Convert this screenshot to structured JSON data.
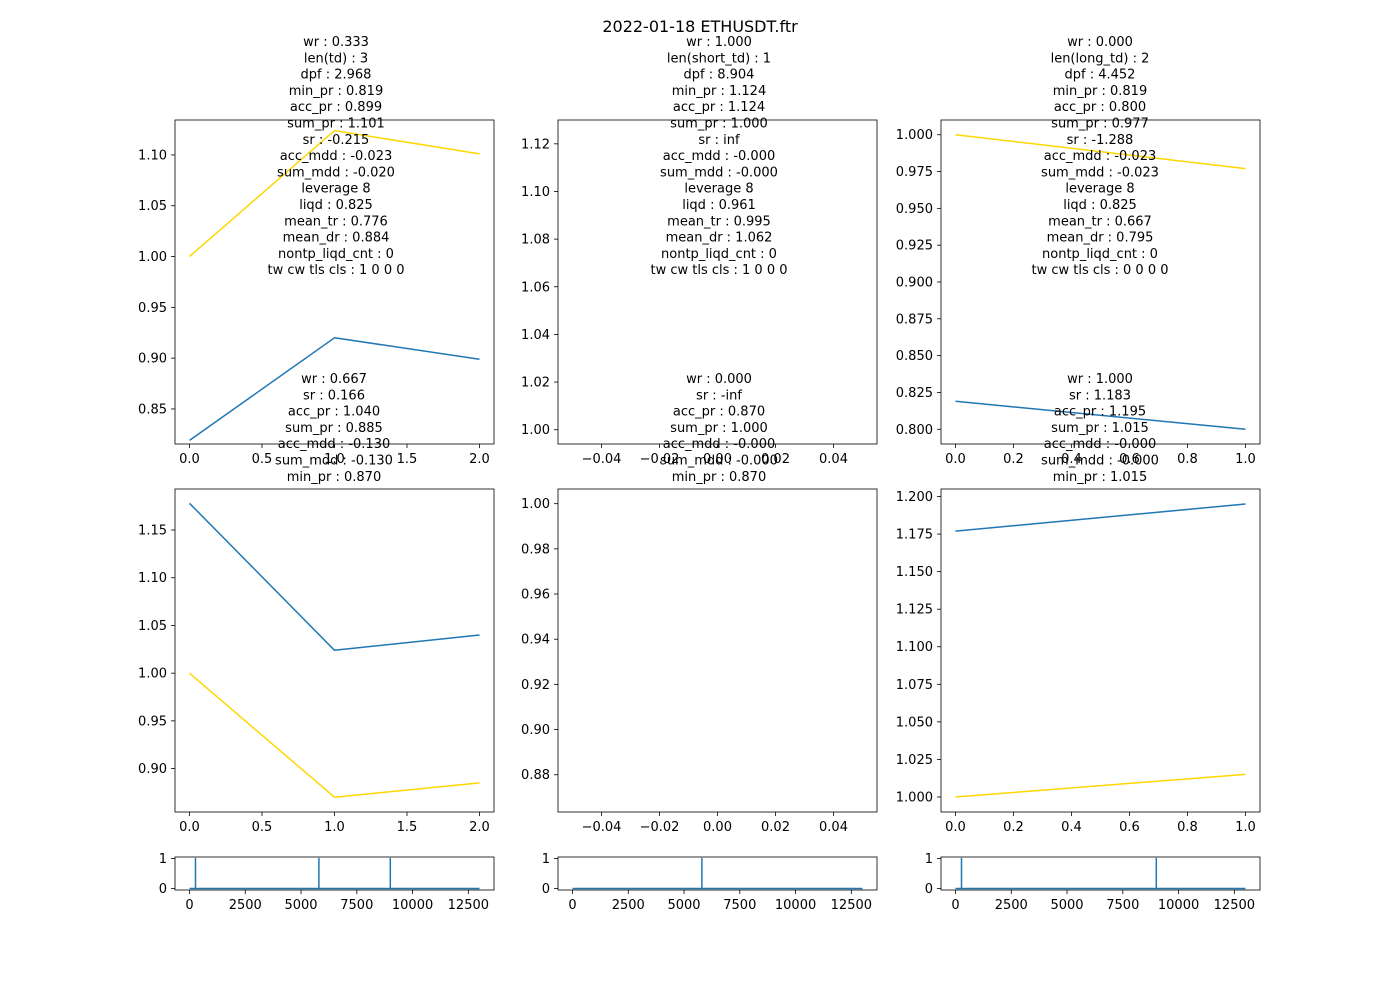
{
  "figure": {
    "title": "2022-01-18 ETHUSDT.ftr"
  },
  "colors": {
    "gold": "#ffd700",
    "blue": "#1f77b4",
    "axis": "#000000"
  },
  "chart_data": [
    {
      "id": "top-left",
      "type": "line",
      "annotation": [
        "wr : 0.333",
        "len(td) : 3",
        "dpf : 2.968",
        "min_pr : 0.819",
        "acc_pr : 0.899",
        "sum_pr : 1.101",
        "sr : -0.215",
        "acc_mdd : -0.023",
        "sum_mdd : -0.020",
        "leverage 8",
        "liqd : 0.825",
        "mean_tr : 0.776",
        "mean_dr : 0.884",
        "nontp_liqd_cnt : 0",
        "tw cw tls cls : 1 0 0 0"
      ],
      "xlim": [
        -0.1,
        2.1
      ],
      "ylim": [
        0.8155,
        1.1344
      ],
      "xticks": [
        0.0,
        0.5,
        1.0,
        1.5,
        2.0
      ],
      "xtick_labels": [
        "0.0",
        "0.5",
        "1.0",
        "1.5",
        "2.0"
      ],
      "yticks": [
        0.85,
        0.9,
        0.95,
        1.0,
        1.05,
        1.1
      ],
      "ytick_labels": [
        "0.85",
        "0.90",
        "0.95",
        "1.00",
        "1.05",
        "1.10"
      ],
      "series": [
        {
          "color": "gold",
          "x": [
            0,
            1,
            2
          ],
          "y": [
            1.0,
            1.124,
            1.101
          ]
        },
        {
          "color": "blue",
          "x": [
            0,
            1,
            2
          ],
          "y": [
            0.819,
            0.92,
            0.899
          ]
        }
      ]
    },
    {
      "id": "top-middle",
      "type": "line",
      "annotation": [
        "wr : 1.000",
        "len(short_td) : 1",
        "dpf : 8.904",
        "min_pr : 1.124",
        "acc_pr : 1.124",
        "sum_pr : 1.000",
        "sr : inf",
        "acc_mdd : -0.000",
        "sum_mdd : -0.000",
        "leverage 8",
        "liqd : 0.961",
        "mean_tr : 0.995",
        "mean_dr : 1.062",
        "nontp_liqd_cnt : 0",
        "tw cw tls cls : 1 0 0 0"
      ],
      "xlim": [
        -0.055,
        0.055
      ],
      "ylim": [
        0.994,
        1.13
      ],
      "xticks": [
        -0.04,
        -0.02,
        0.0,
        0.02,
        0.04
      ],
      "xtick_labels": [
        "−0.04",
        "−0.02",
        "0.00",
        "0.02",
        "0.04"
      ],
      "yticks": [
        1.0,
        1.02,
        1.04,
        1.06,
        1.08,
        1.1,
        1.12
      ],
      "ytick_labels": [
        "1.00",
        "1.02",
        "1.04",
        "1.06",
        "1.08",
        "1.10",
        "1.12"
      ],
      "series": []
    },
    {
      "id": "top-right",
      "type": "line",
      "annotation": [
        "wr : 0.000",
        "len(long_td) : 2",
        "dpf : 4.452",
        "min_pr : 0.819",
        "acc_pr : 0.800",
        "sum_pr : 0.977",
        "sr : -1.288",
        "acc_mdd : -0.023",
        "sum_mdd : -0.023",
        "leverage 8",
        "liqd : 0.825",
        "mean_tr : 0.667",
        "mean_dr : 0.795",
        "nontp_liqd_cnt : 0",
        "tw cw tls cls : 0 0 0 0"
      ],
      "xlim": [
        -0.05,
        1.05
      ],
      "ylim": [
        0.79,
        1.01
      ],
      "xticks": [
        0.0,
        0.2,
        0.4,
        0.6,
        0.8,
        1.0
      ],
      "xtick_labels": [
        "0.0",
        "0.2",
        "0.4",
        "0.6",
        "0.8",
        "1.0"
      ],
      "yticks": [
        0.8,
        0.825,
        0.85,
        0.875,
        0.9,
        0.925,
        0.95,
        0.975,
        1.0
      ],
      "ytick_labels": [
        "0.800",
        "0.825",
        "0.850",
        "0.875",
        "0.900",
        "0.925",
        "0.950",
        "0.975",
        "1.000"
      ],
      "series": [
        {
          "color": "gold",
          "x": [
            0,
            1
          ],
          "y": [
            1.0,
            0.977
          ]
        },
        {
          "color": "blue",
          "x": [
            0,
            1
          ],
          "y": [
            0.819,
            0.8
          ]
        }
      ]
    },
    {
      "id": "mid-left",
      "type": "line",
      "annotation": [
        "wr : 0.667",
        "sr : 0.166",
        "acc_pr : 1.040",
        "sum_pr : 0.885",
        "acc_mdd : -0.130",
        "sum_mdd : -0.130",
        "min_pr : 0.870"
      ],
      "xlim": [
        -0.1,
        2.1
      ],
      "ylim": [
        0.8545,
        1.193
      ],
      "xticks": [
        0.0,
        0.5,
        1.0,
        1.5,
        2.0
      ],
      "xtick_labels": [
        "0.0",
        "0.5",
        "1.0",
        "1.5",
        "2.0"
      ],
      "yticks": [
        0.9,
        0.95,
        1.0,
        1.05,
        1.1,
        1.15
      ],
      "ytick_labels": [
        "0.90",
        "0.95",
        "1.00",
        "1.05",
        "1.10",
        "1.15"
      ],
      "series": [
        {
          "color": "blue",
          "x": [
            0,
            1,
            2
          ],
          "y": [
            1.178,
            1.024,
            1.04
          ]
        },
        {
          "color": "gold",
          "x": [
            0,
            1,
            2
          ],
          "y": [
            1.0,
            0.87,
            0.885
          ]
        }
      ]
    },
    {
      "id": "mid-middle",
      "type": "line",
      "annotation": [
        "wr : 0.000",
        "sr : -inf",
        "acc_pr : 0.870",
        "sum_pr : 1.000",
        "acc_mdd : -0.000",
        "sum_mdd : -0.000",
        "min_pr : 0.870"
      ],
      "xlim": [
        -0.055,
        0.055
      ],
      "ylim": [
        0.8635,
        1.0065
      ],
      "xticks": [
        -0.04,
        -0.02,
        0.0,
        0.02,
        0.04
      ],
      "xtick_labels": [
        "−0.04",
        "−0.02",
        "0.00",
        "0.02",
        "0.04"
      ],
      "yticks": [
        0.88,
        0.9,
        0.92,
        0.94,
        0.96,
        0.98,
        1.0
      ],
      "ytick_labels": [
        "0.88",
        "0.90",
        "0.92",
        "0.94",
        "0.96",
        "0.98",
        "1.00"
      ],
      "series": []
    },
    {
      "id": "mid-right",
      "type": "line",
      "annotation": [
        "wr : 1.000",
        "sr : 1.183",
        "acc_pr : 1.195",
        "sum_pr : 1.015",
        "acc_mdd : -0.000",
        "sum_mdd : -0.000",
        "min_pr : 1.015"
      ],
      "xlim": [
        -0.05,
        1.05
      ],
      "ylim": [
        0.99,
        1.205
      ],
      "xticks": [
        0.0,
        0.2,
        0.4,
        0.6,
        0.8,
        1.0
      ],
      "xtick_labels": [
        "0.0",
        "0.2",
        "0.4",
        "0.6",
        "0.8",
        "1.0"
      ],
      "yticks": [
        1.0,
        1.025,
        1.05,
        1.075,
        1.1,
        1.125,
        1.15,
        1.175,
        1.2
      ],
      "ytick_labels": [
        "1.000",
        "1.025",
        "1.050",
        "1.075",
        "1.100",
        "1.125",
        "1.150",
        "1.175",
        "1.200"
      ],
      "series": [
        {
          "color": "blue",
          "x": [
            0,
            1
          ],
          "y": [
            1.177,
            1.195
          ]
        },
        {
          "color": "gold",
          "x": [
            0,
            1
          ],
          "y": [
            1.0,
            1.015
          ]
        }
      ]
    },
    {
      "id": "bottom-left",
      "type": "line",
      "annotation": [],
      "xlim": [
        -650,
        13650
      ],
      "ylim": [
        -0.05,
        1.05
      ],
      "xticks": [
        0,
        2500,
        5000,
        7500,
        10000,
        12500
      ],
      "xtick_labels": [
        "0",
        "2500",
        "5000",
        "7500",
        "10000",
        "12500"
      ],
      "yticks": [
        0,
        1
      ],
      "ytick_labels": [
        "0",
        "1"
      ],
      "series": [
        {
          "color": "blue",
          "x": [
            0,
            270,
            270,
            270,
            5800,
            5800,
            5800,
            9000,
            9000,
            9000,
            13000
          ],
          "y": [
            0,
            0,
            1,
            0,
            0,
            1,
            0,
            0,
            1,
            0,
            0
          ]
        }
      ]
    },
    {
      "id": "bottom-middle",
      "type": "line",
      "annotation": [],
      "xlim": [
        -650,
        13650
      ],
      "ylim": [
        -0.05,
        1.05
      ],
      "xticks": [
        0,
        2500,
        5000,
        7500,
        10000,
        12500
      ],
      "xtick_labels": [
        "0",
        "2500",
        "5000",
        "7500",
        "10000",
        "12500"
      ],
      "yticks": [
        0,
        1
      ],
      "ytick_labels": [
        "0",
        "1"
      ],
      "series": [
        {
          "color": "blue",
          "x": [
            0,
            5800,
            5800,
            5800,
            13000
          ],
          "y": [
            0,
            0,
            1,
            0,
            0
          ]
        }
      ]
    },
    {
      "id": "bottom-right",
      "type": "line",
      "annotation": [],
      "xlim": [
        -650,
        13650
      ],
      "ylim": [
        -0.05,
        1.05
      ],
      "xticks": [
        0,
        2500,
        5000,
        7500,
        10000,
        12500
      ],
      "xtick_labels": [
        "0",
        "2500",
        "5000",
        "7500",
        "10000",
        "12500"
      ],
      "yticks": [
        0,
        1
      ],
      "ytick_labels": [
        "0",
        "1"
      ],
      "series": [
        {
          "color": "blue",
          "x": [
            0,
            270,
            270,
            270,
            9000,
            9000,
            9000,
            13000
          ],
          "y": [
            0,
            0,
            1,
            0,
            0,
            1,
            0,
            0
          ]
        }
      ]
    }
  ]
}
